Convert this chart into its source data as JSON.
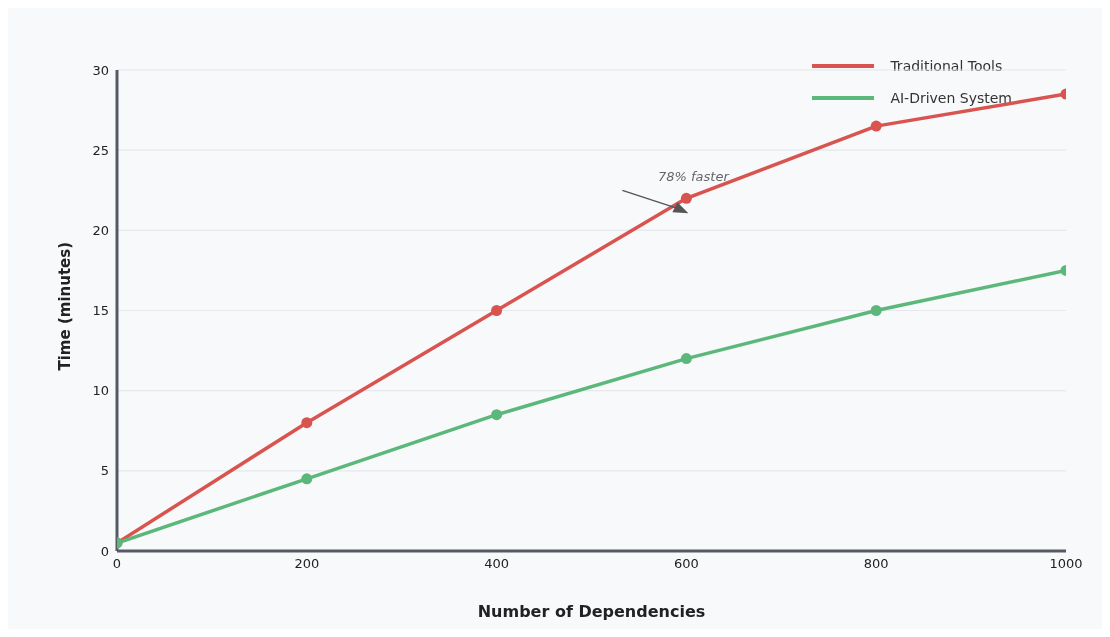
{
  "chart_data": {
    "type": "line",
    "xlabel": "Number of Dependencies",
    "ylabel": "Time (minutes)",
    "x": [
      0,
      200,
      400,
      600,
      800,
      1000
    ],
    "series": [
      {
        "name": "Traditional Tools",
        "color": "#d9534f",
        "values": [
          0.5,
          8,
          15,
          22,
          26.5,
          28.5
        ]
      },
      {
        "name": "AI-Driven System",
        "color": "#5cb87a",
        "values": [
          0.5,
          4.5,
          8.5,
          12,
          15,
          17.5
        ]
      }
    ],
    "xlim": [
      0,
      1000
    ],
    "xticks": [
      0,
      200,
      400,
      600,
      800,
      1000
    ],
    "ylim": [
      0,
      30
    ],
    "yticks": [
      0,
      5,
      10,
      15,
      20,
      25,
      30
    ],
    "annotations": [
      {
        "text": "78% faster",
        "x": 600,
        "y": 22
      }
    ],
    "grid": "y",
    "legend": "top right",
    "marker": "circle",
    "line_style": "solid"
  }
}
